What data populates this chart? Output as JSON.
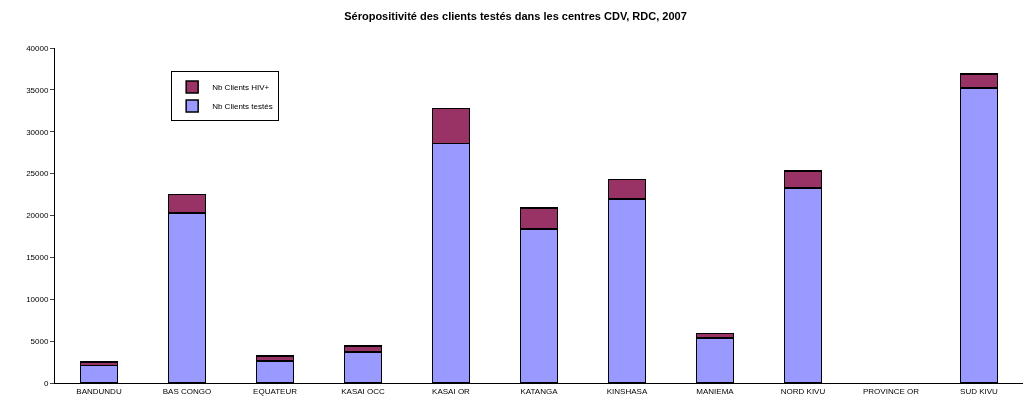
{
  "chart_data": {
    "type": "bar",
    "title": "Séropositivité des clients testés dans les centres CDV, RDC, 2007",
    "categories": [
      "BANDUNDU",
      "BAS CONGO",
      "EQUATEUR",
      "KASAI OCC",
      "KASAI OR",
      "KATANGA",
      "KINSHASA",
      "MANIEMA",
      "NORD KIVU",
      "PROVINCE OR",
      "SUD KIVU"
    ],
    "stacked": true,
    "series": [
      {
        "name": "Nb Clients testés",
        "color": "#9999ff",
        "values": [
          2100,
          20300,
          2600,
          3700,
          28600,
          18400,
          22000,
          5400,
          23300,
          null,
          35200
        ]
      },
      {
        "name": "Nb Clients HIV+",
        "color": "#993366",
        "values": [
          400,
          2200,
          600,
          700,
          4200,
          2500,
          2300,
          500,
          2000,
          null,
          1700
        ]
      }
    ],
    "ylim": [
      0,
      40000
    ],
    "yticks": [
      0,
      5000,
      10000,
      15000,
      20000,
      25000,
      30000,
      35000,
      40000
    ],
    "grid": false,
    "legend": "top left"
  }
}
